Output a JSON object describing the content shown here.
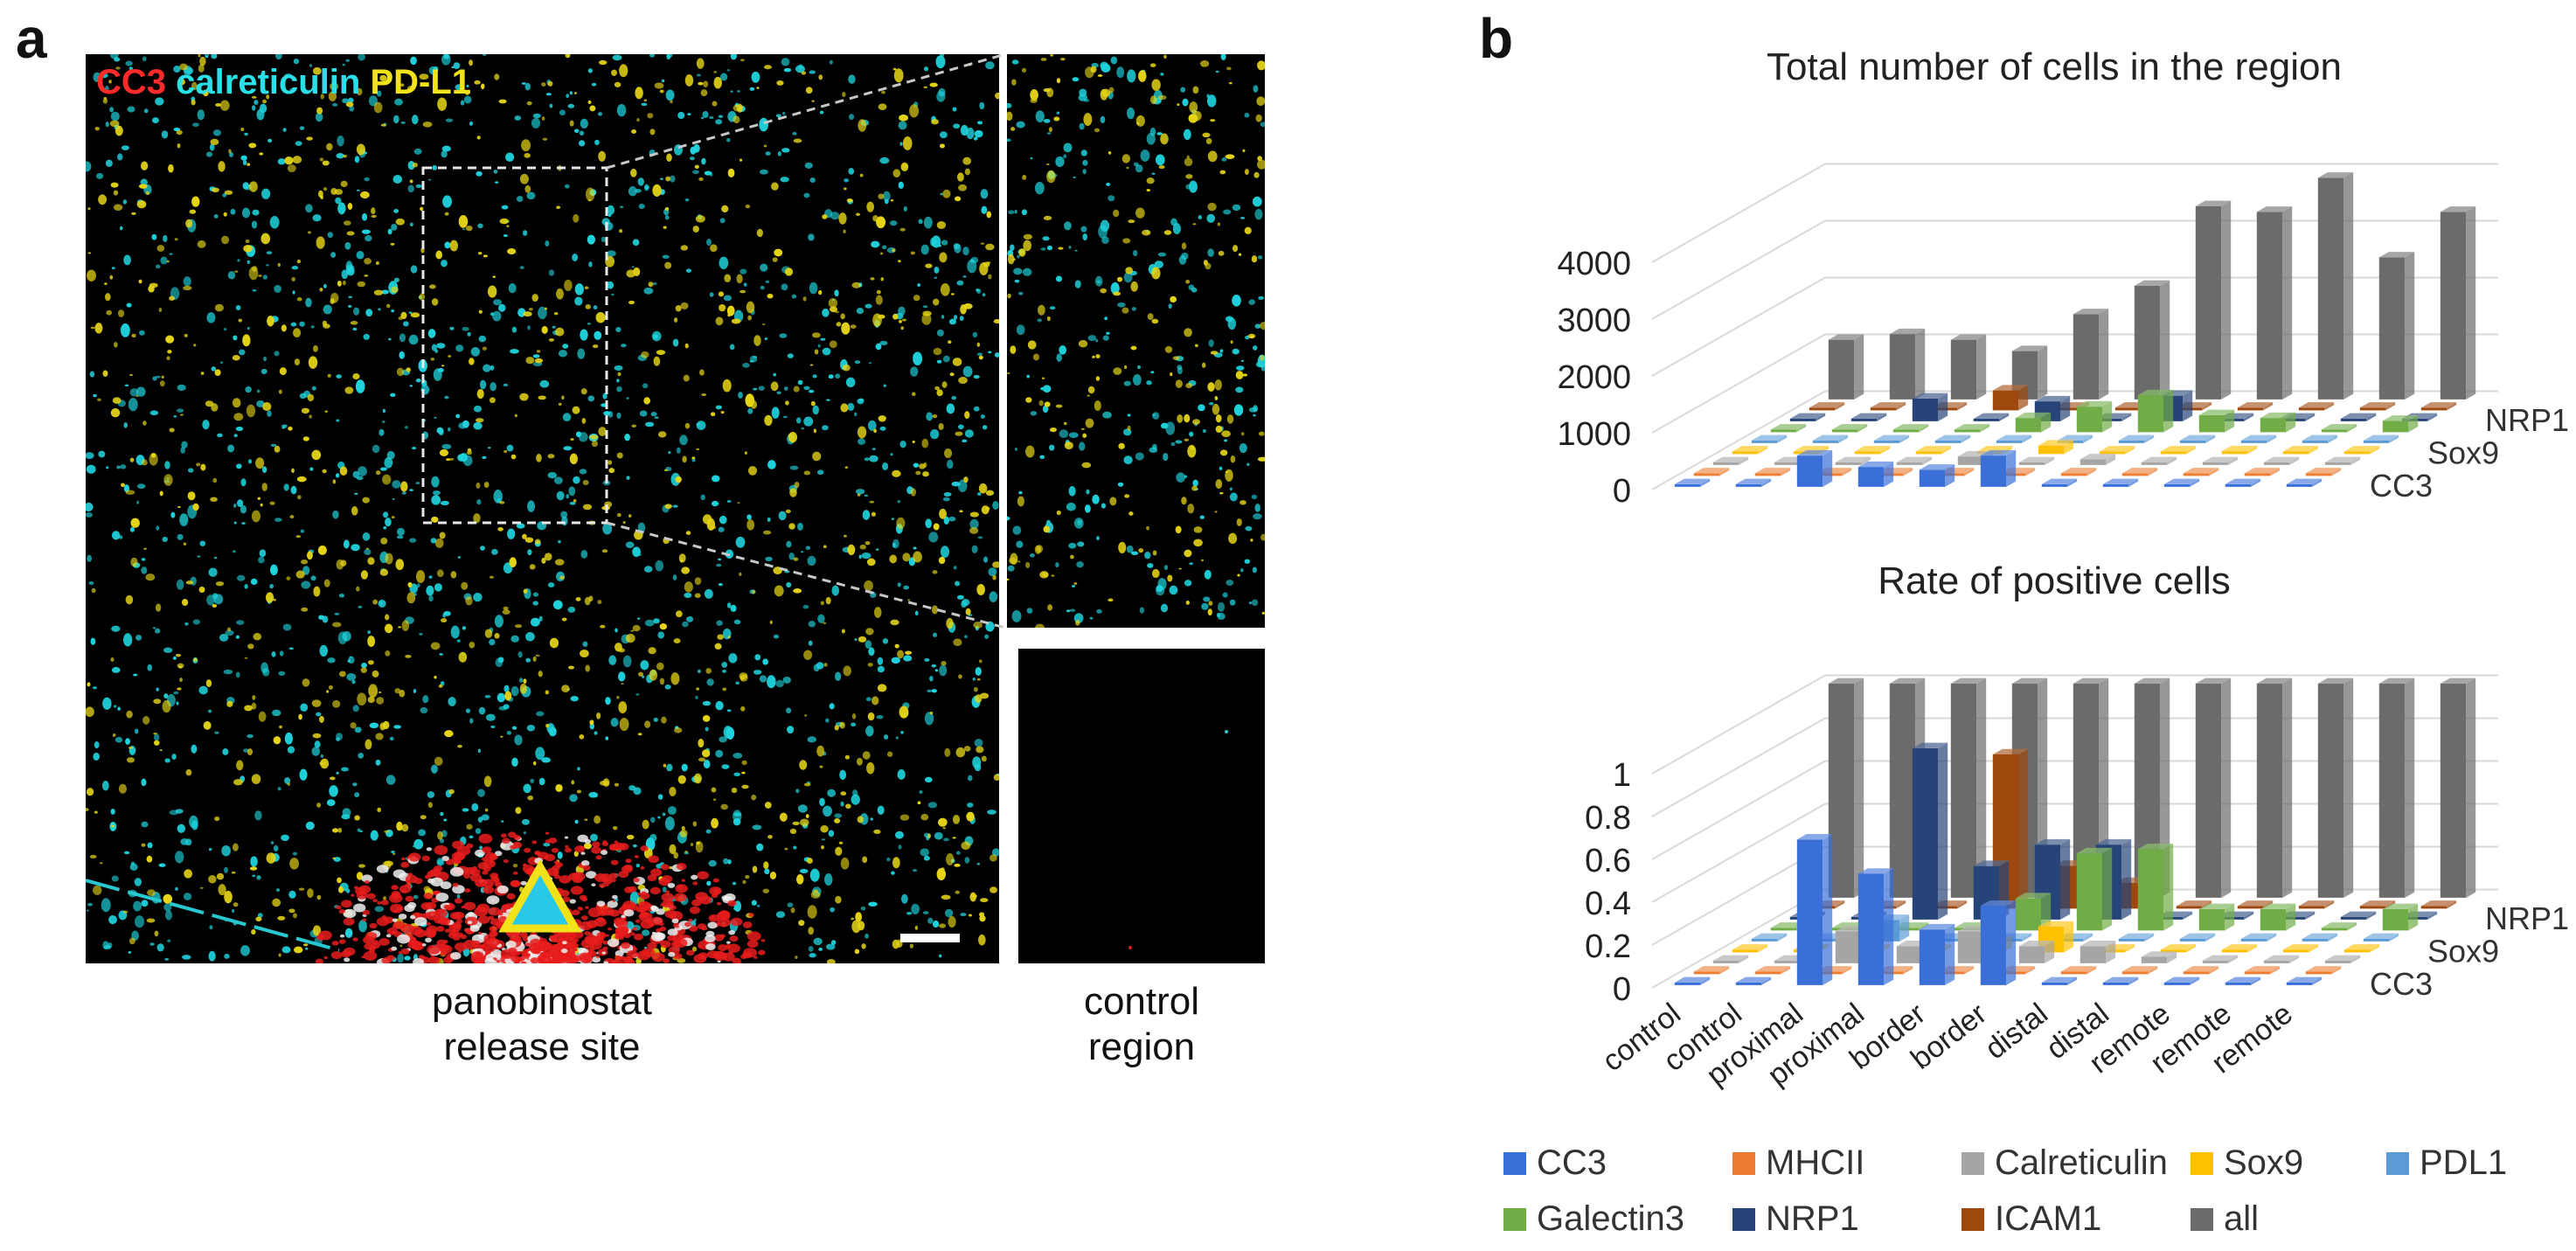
{
  "panel_a": {
    "letter": "a",
    "stain_labels": [
      {
        "text": "CC3",
        "color": "#ff2a2a"
      },
      {
        "text": "calreticulin",
        "color": "#29e0e8"
      },
      {
        "text": "PD-L1",
        "color": "#f2e21a"
      }
    ],
    "main_caption_line1": "panobinostat",
    "main_caption_line2": "release site",
    "control_caption_line1": "control",
    "control_caption_line2": "region"
  },
  "panel_b": {
    "letter": "b"
  },
  "chart_data": [
    {
      "type": "bar3d",
      "title": "Total number of cells in the region",
      "yticks": [
        "0",
        "1000",
        "2000",
        "3000",
        "4000"
      ],
      "ylim": [
        0,
        4000
      ],
      "categories": [
        "control",
        "control",
        "proximal",
        "proximal",
        "border",
        "border",
        "distal",
        "distal",
        "remote",
        "remote",
        "remote"
      ],
      "depth_labels": [
        "CC3",
        "Sox9",
        "NRP1"
      ],
      "series": [
        {
          "name": "CC3",
          "color": "#3a6fd8",
          "values": [
            0,
            0,
            550,
            350,
            300,
            550,
            0,
            0,
            0,
            0,
            0
          ]
        },
        {
          "name": "MHCII",
          "color": "#ed7d31",
          "values": [
            0,
            0,
            0,
            0,
            0,
            0,
            0,
            0,
            0,
            0,
            0
          ]
        },
        {
          "name": "Calreticulin",
          "color": "#a5a5a5",
          "values": [
            0,
            0,
            0,
            0,
            150,
            0,
            100,
            0,
            0,
            0,
            0
          ]
        },
        {
          "name": "Sox9",
          "color": "#ffc000",
          "values": [
            0,
            0,
            0,
            0,
            0,
            150,
            0,
            0,
            50,
            0,
            0
          ]
        },
        {
          "name": "PDL1",
          "color": "#5b9bd5",
          "values": [
            0,
            0,
            0,
            0,
            0,
            0,
            0,
            0,
            0,
            0,
            0
          ]
        },
        {
          "name": "Galectin3",
          "color": "#70ad47",
          "values": [
            0,
            0,
            0,
            0,
            250,
            450,
            650,
            300,
            250,
            0,
            200
          ]
        },
        {
          "name": "NRP1",
          "color": "#264478",
          "values": [
            0,
            0,
            400,
            0,
            350,
            0,
            450,
            0,
            0,
            0,
            0
          ]
        },
        {
          "name": "ICAM1",
          "color": "#9e480e",
          "values": [
            0,
            0,
            0,
            350,
            0,
            0,
            0,
            0,
            0,
            0,
            0
          ]
        },
        {
          "name": "all",
          "color": "#6b6b6b",
          "values": [
            1050,
            1150,
            1050,
            850,
            1500,
            2000,
            3400,
            3300,
            3900,
            2500,
            3300
          ]
        }
      ]
    },
    {
      "type": "bar3d",
      "title": "Rate of positive cells",
      "yticks": [
        "0",
        "0.2",
        "0.4",
        "0.6",
        "0.8",
        "1"
      ],
      "ylim": [
        0,
        1
      ],
      "categories": [
        "control",
        "control",
        "proximal",
        "proximal",
        "border",
        "border",
        "distal",
        "distal",
        "remote",
        "remote",
        "remote"
      ],
      "depth_labels": [
        "CC3",
        "Sox9",
        "NRP1"
      ],
      "series": [
        {
          "name": "CC3",
          "color": "#3a6fd8",
          "values": [
            0,
            0,
            0.68,
            0.52,
            0.26,
            0.37,
            0,
            0,
            0,
            0,
            0
          ]
        },
        {
          "name": "MHCII",
          "color": "#ed7d31",
          "values": [
            0,
            0,
            0,
            0,
            0,
            0,
            0,
            0,
            0,
            0,
            0
          ]
        },
        {
          "name": "Calreticulin",
          "color": "#a5a5a5",
          "values": [
            0,
            0,
            0.15,
            0.08,
            0.15,
            0.08,
            0.08,
            0.03,
            0,
            0,
            0
          ]
        },
        {
          "name": "Sox9",
          "color": "#ffc000",
          "values": [
            0,
            0,
            0,
            0,
            0.05,
            0.12,
            0,
            0,
            0,
            0,
            0
          ]
        },
        {
          "name": "PDL1",
          "color": "#5b9bd5",
          "values": [
            0,
            0,
            0.1,
            0,
            0,
            0,
            0,
            0,
            0,
            0,
            0
          ]
        },
        {
          "name": "Galectin3",
          "color": "#70ad47",
          "values": [
            0,
            0,
            0,
            0,
            0.15,
            0.36,
            0.38,
            0.1,
            0.1,
            0,
            0.1
          ]
        },
        {
          "name": "NRP1",
          "color": "#264478",
          "values": [
            0,
            0,
            0.8,
            0.25,
            0.35,
            0.35,
            0,
            0,
            0,
            0,
            0
          ]
        },
        {
          "name": "ICAM1",
          "color": "#9e480e",
          "values": [
            0,
            0,
            0,
            0.72,
            0.2,
            0.12,
            0,
            0,
            0,
            0,
            0
          ]
        },
        {
          "name": "all",
          "color": "#6b6b6b",
          "values": [
            1,
            1,
            1,
            1,
            1,
            1,
            1,
            1,
            1,
            1,
            1
          ]
        }
      ]
    }
  ],
  "legend": [
    {
      "name": "CC3",
      "color": "#3a6fd8"
    },
    {
      "name": "MHCII",
      "color": "#ed7d31"
    },
    {
      "name": "Calreticulin",
      "color": "#a5a5a5"
    },
    {
      "name": "Sox9",
      "color": "#ffc000"
    },
    {
      "name": "PDL1",
      "color": "#5b9bd5"
    },
    {
      "name": "Galectin3",
      "color": "#70ad47"
    },
    {
      "name": "NRP1",
      "color": "#264478"
    },
    {
      "name": "ICAM1",
      "color": "#9e480e"
    },
    {
      "name": "all",
      "color": "#6b6b6b"
    }
  ]
}
